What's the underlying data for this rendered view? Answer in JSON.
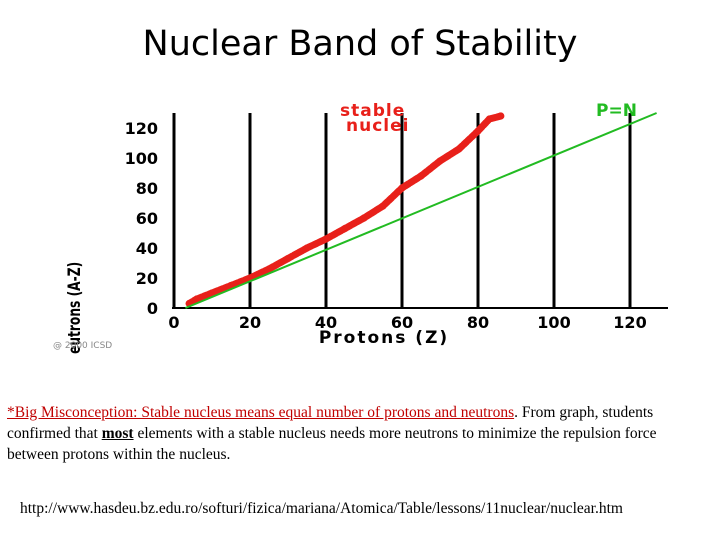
{
  "slide": {
    "title": "Nuclear Band of Stability"
  },
  "chart_data": {
    "type": "scatter",
    "title": "",
    "xlabel": "Protons (Z)",
    "ylabel": "Neutrons (A-Z)",
    "xlim": [
      0,
      130
    ],
    "ylim": [
      0,
      130
    ],
    "xticks": [
      "0",
      "20",
      "40",
      "60",
      "80",
      "100",
      "120"
    ],
    "yticks": [
      "0",
      "20",
      "40",
      "60",
      "80",
      "100",
      "120"
    ],
    "grid": "vertical",
    "annotations": [
      "stable nuclei",
      "P=N"
    ],
    "copyright": "@ 2000 ICSD",
    "series": [
      {
        "name": "stable nuclei",
        "color": "#e8201a",
        "points": [
          [
            4,
            3
          ],
          [
            6,
            6
          ],
          [
            10,
            10
          ],
          [
            15,
            15
          ],
          [
            20,
            20
          ],
          [
            25,
            26
          ],
          [
            30,
            33
          ],
          [
            35,
            40
          ],
          [
            40,
            46
          ],
          [
            45,
            53
          ],
          [
            50,
            60
          ],
          [
            55,
            68
          ],
          [
            60,
            80
          ],
          [
            65,
            88
          ],
          [
            70,
            98
          ],
          [
            75,
            106
          ],
          [
            80,
            118
          ],
          [
            83,
            126
          ],
          [
            86,
            128
          ]
        ]
      },
      {
        "name": "P=N",
        "color": "#22bb22",
        "points": [
          [
            3,
            0
          ],
          [
            127,
            130
          ]
        ]
      }
    ]
  },
  "notes": {
    "misconception": "*Big Misconception:  Stable nucleus means equal number of protons and neutrons",
    "text1": ".  From graph, students confirmed that ",
    "most": "most",
    "text2": " elements with a stable nucleus needs more neutrons to minimize the repulsion force between protons within  the nucleus."
  },
  "source": {
    "url": "http://www.hasdeu.bz.edu.ro/softuri/fizica/mariana/Atomica/Table/lessons/11nuclear/nuclear.htm"
  }
}
